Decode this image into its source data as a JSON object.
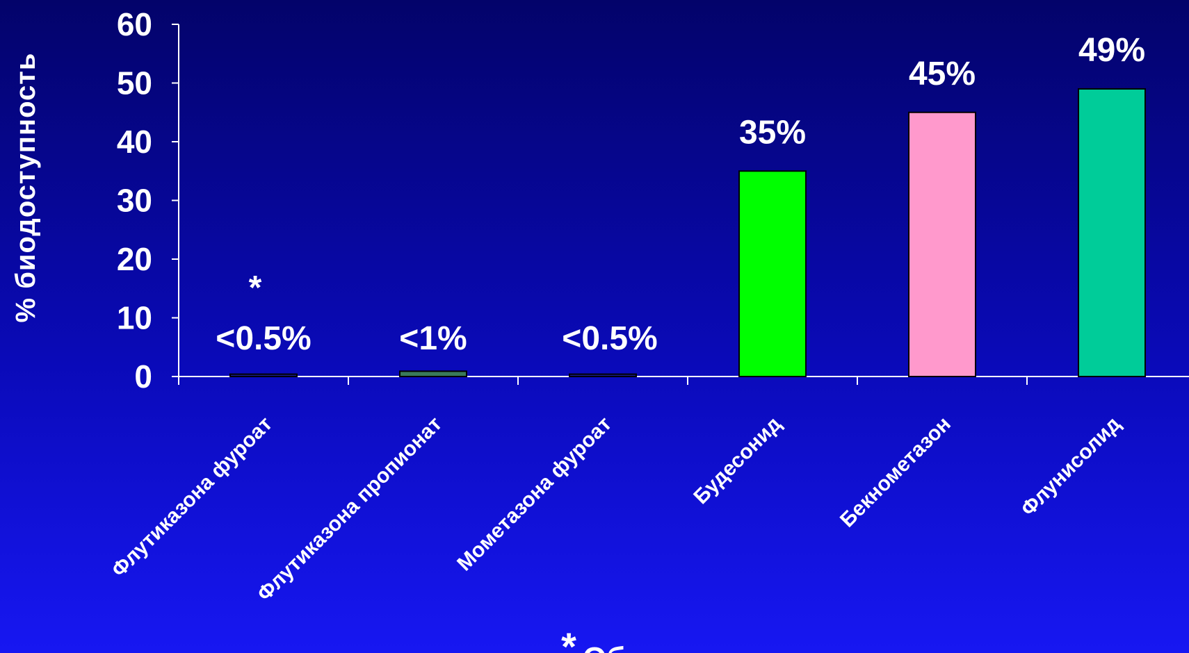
{
  "chart_data": {
    "type": "bar",
    "ylabel": "% биодоступность",
    "ylim": [
      0,
      60
    ],
    "yticks": [
      "0",
      "10",
      "20",
      "30",
      "40",
      "50",
      "60"
    ],
    "grid": false,
    "categories": [
      "Флутиказона фуроат",
      "Флутиказона пропионат",
      "Мометазона фуроат",
      "Будесонид",
      "Бекнометазон",
      "Флунисолид"
    ],
    "values": [
      0.4,
      0.9,
      0.4,
      35,
      45,
      49
    ],
    "data_labels": [
      "<0.5%",
      "<1%",
      "<0.5%",
      "35%",
      "45%",
      "49%"
    ],
    "colors": [
      "#1a1a8a",
      "#3a7a5a",
      "#1a1a8a",
      "#00ff00",
      "#ff99cc",
      "#00cc99"
    ],
    "annotations": {
      "bar_star": "*",
      "footnote_star": "*",
      "footnote_text": "Об"
    }
  },
  "colors": {
    "axis": "#ffffff",
    "text": "#ffffff",
    "bar_outline": "#000000"
  }
}
